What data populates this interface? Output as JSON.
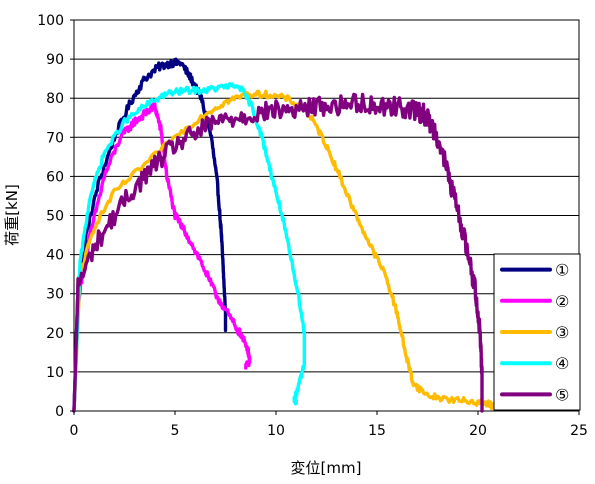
{
  "chart_data": {
    "type": "line",
    "title": "",
    "xlabel": "変位[mm]",
    "ylabel": "荷重[kN]",
    "xlim": [
      0,
      25
    ],
    "ylim": [
      0,
      100
    ],
    "xticks": [
      0,
      5,
      10,
      15,
      20,
      25
    ],
    "yticks": [
      0,
      10,
      20,
      30,
      40,
      50,
      60,
      70,
      80,
      90,
      100
    ],
    "grid": "horizontal",
    "legend_position": "bottom-right",
    "series": [
      {
        "name": "①",
        "color": "#000080",
        "noise": 1.0,
        "points": [
          [
            0,
            0
          ],
          [
            0.2,
            32
          ],
          [
            0.6,
            45
          ],
          [
            1.2,
            58
          ],
          [
            2.0,
            70
          ],
          [
            2.8,
            79
          ],
          [
            3.5,
            85
          ],
          [
            4.2,
            88
          ],
          [
            4.8,
            89
          ],
          [
            5.3,
            89
          ],
          [
            5.8,
            85
          ],
          [
            6.3,
            80
          ],
          [
            6.8,
            70
          ],
          [
            7.1,
            58
          ],
          [
            7.3,
            45
          ],
          [
            7.4,
            35
          ],
          [
            7.5,
            25
          ],
          [
            7.5,
            21
          ]
        ]
      },
      {
        "name": "②",
        "color": "#ff00ff",
        "noise": 1.0,
        "points": [
          [
            0,
            0
          ],
          [
            0.2,
            28
          ],
          [
            0.8,
            45
          ],
          [
            1.5,
            60
          ],
          [
            2.3,
            70
          ],
          [
            3.0,
            74
          ],
          [
            3.5,
            76
          ],
          [
            4.0,
            78
          ],
          [
            4.3,
            72
          ],
          [
            4.6,
            60
          ],
          [
            5.0,
            50
          ],
          [
            5.6,
            45
          ],
          [
            6.3,
            38
          ],
          [
            7.0,
            30
          ],
          [
            7.6,
            25
          ],
          [
            8.2,
            20
          ],
          [
            8.6,
            16
          ],
          [
            8.7,
            13
          ],
          [
            8.5,
            11
          ]
        ]
      },
      {
        "name": "③",
        "color": "#ffbb00",
        "noise": 0.8,
        "points": [
          [
            0,
            0
          ],
          [
            0.3,
            35
          ],
          [
            1.0,
            47
          ],
          [
            2.0,
            56
          ],
          [
            3.5,
            63
          ],
          [
            5.0,
            70
          ],
          [
            6.5,
            76
          ],
          [
            7.5,
            79
          ],
          [
            8.5,
            81
          ],
          [
            9.5,
            81
          ],
          [
            10.5,
            80
          ],
          [
            11.5,
            77
          ],
          [
            12.3,
            70
          ],
          [
            13.0,
            62
          ],
          [
            13.8,
            52
          ],
          [
            14.6,
            43
          ],
          [
            15.4,
            35
          ],
          [
            16.0,
            25
          ],
          [
            16.4,
            15
          ],
          [
            16.8,
            7
          ],
          [
            17.5,
            4
          ],
          [
            18.5,
            3
          ],
          [
            19.5,
            2.5
          ],
          [
            20.5,
            2
          ],
          [
            20.8,
            1
          ]
        ]
      },
      {
        "name": "④",
        "color": "#00ffff",
        "noise": 0.8,
        "points": [
          [
            0,
            0
          ],
          [
            0.3,
            38
          ],
          [
            0.8,
            55
          ],
          [
            1.5,
            66
          ],
          [
            2.5,
            74
          ],
          [
            3.5,
            78
          ],
          [
            4.5,
            81
          ],
          [
            5.5,
            82
          ],
          [
            6.5,
            82
          ],
          [
            7.5,
            83
          ],
          [
            8.2,
            83
          ],
          [
            8.8,
            78
          ],
          [
            9.3,
            70
          ],
          [
            9.8,
            60
          ],
          [
            10.3,
            50
          ],
          [
            10.7,
            40
          ],
          [
            11.1,
            30
          ],
          [
            11.4,
            20
          ],
          [
            11.4,
            12
          ],
          [
            11.1,
            6
          ],
          [
            10.9,
            3
          ],
          [
            11.0,
            2
          ]
        ]
      },
      {
        "name": "⑤",
        "color": "#800080",
        "noise": 2.5,
        "points": [
          [
            0,
            0
          ],
          [
            0.2,
            32
          ],
          [
            1.0,
            42
          ],
          [
            2.0,
            50
          ],
          [
            3.0,
            57
          ],
          [
            4.0,
            63
          ],
          [
            5.0,
            68
          ],
          [
            6.0,
            71
          ],
          [
            7.0,
            74
          ],
          [
            8.0,
            75
          ],
          [
            9.0,
            76
          ],
          [
            10.0,
            77
          ],
          [
            11.0,
            77
          ],
          [
            12.0,
            78
          ],
          [
            13.0,
            78
          ],
          [
            14.0,
            79
          ],
          [
            15.0,
            78
          ],
          [
            16.0,
            78
          ],
          [
            16.8,
            77
          ],
          [
            17.3,
            76
          ],
          [
            17.6,
            74
          ],
          [
            18.0,
            70
          ],
          [
            18.4,
            63
          ],
          [
            18.8,
            55
          ],
          [
            19.2,
            47
          ],
          [
            19.6,
            38
          ],
          [
            19.9,
            30
          ],
          [
            20.1,
            20
          ],
          [
            20.2,
            10
          ],
          [
            20.2,
            3
          ],
          [
            20.2,
            1
          ]
        ]
      }
    ]
  }
}
